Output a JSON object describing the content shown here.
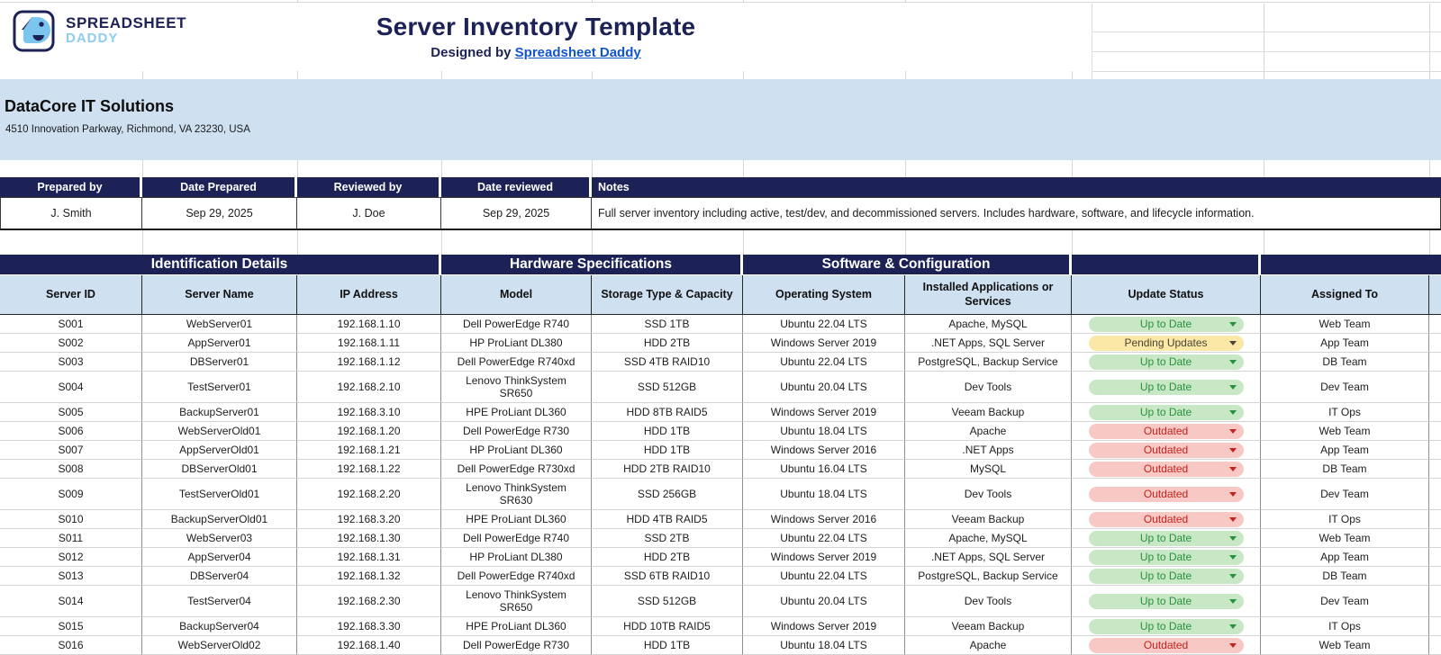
{
  "brand": {
    "line1": "SPREADSHEET",
    "line2": "DADDY",
    "logo": "spreadsheet-daddy-face-logo"
  },
  "header": {
    "title": "Server Inventory Template",
    "designed_by_prefix": "Designed by ",
    "designed_by_link": "Spreadsheet Daddy"
  },
  "company": {
    "name": "DataCore IT Solutions",
    "address": "4510 Innovation Parkway, Richmond, VA 23230, USA"
  },
  "meta_table": {
    "headers": [
      "Prepared by",
      "Date Prepared",
      "Reviewed by",
      "Date reviewed",
      "Notes"
    ],
    "values": [
      "J. Smith",
      "Sep 29, 2025",
      "J. Doe",
      "Sep 29, 2025",
      "Full server inventory including active, test/dev, and decommissioned servers. Includes hardware, software, and lifecycle information."
    ]
  },
  "inventory": {
    "groups": [
      "Identification Details",
      "Hardware Specifications",
      "Software & Configuration",
      "",
      ""
    ],
    "columns": [
      "Server ID",
      "Server Name",
      "IP Address",
      "Model",
      "Storage Type & Capacity",
      "Operating System",
      "Installed Applications or Services",
      "Update Status",
      "Assigned To"
    ],
    "rows": [
      {
        "id": "S001",
        "name": "WebServer01",
        "ip": "192.168.1.10",
        "model": "Dell PowerEdge R740",
        "storage": "SSD 1TB",
        "os": "Ubuntu 22.04 LTS",
        "apps": "Apache, MySQL",
        "status": "Up to Date",
        "status_kind": "up",
        "team": "Web Team"
      },
      {
        "id": "S002",
        "name": "AppServer01",
        "ip": "192.168.1.11",
        "model": "HP ProLiant DL380",
        "storage": "HDD 2TB",
        "os": "Windows Server 2019",
        "apps": ".NET Apps, SQL Server",
        "status": "Pending Updates",
        "status_kind": "pending",
        "team": "App Team"
      },
      {
        "id": "S003",
        "name": "DBServer01",
        "ip": "192.168.1.12",
        "model": "Dell PowerEdge R740xd",
        "storage": "SSD 4TB RAID10",
        "os": "Ubuntu 22.04 LTS",
        "apps": "PostgreSQL, Backup Service",
        "status": "Up to Date",
        "status_kind": "up",
        "team": "DB Team"
      },
      {
        "id": "S004",
        "name": "TestServer01",
        "ip": "192.168.2.10",
        "model": "Lenovo ThinkSystem SR650",
        "storage": "SSD 512GB",
        "os": "Ubuntu 20.04 LTS",
        "apps": "Dev Tools",
        "status": "Up to Date",
        "status_kind": "up",
        "team": "Dev Team"
      },
      {
        "id": "S005",
        "name": "BackupServer01",
        "ip": "192.168.3.10",
        "model": "HPE ProLiant DL360",
        "storage": "HDD 8TB RAID5",
        "os": "Windows Server 2019",
        "apps": "Veeam Backup",
        "status": "Up to Date",
        "status_kind": "up",
        "team": "IT Ops"
      },
      {
        "id": "S006",
        "name": "WebServerOld01",
        "ip": "192.168.1.20",
        "model": "Dell PowerEdge R730",
        "storage": "HDD 1TB",
        "os": "Ubuntu 18.04 LTS",
        "apps": "Apache",
        "status": "Outdated",
        "status_kind": "outdated",
        "team": "Web Team"
      },
      {
        "id": "S007",
        "name": "AppServerOld01",
        "ip": "192.168.1.21",
        "model": "HP ProLiant DL360",
        "storage": "HDD 1TB",
        "os": "Windows Server 2016",
        "apps": ".NET Apps",
        "status": "Outdated",
        "status_kind": "outdated",
        "team": "App Team"
      },
      {
        "id": "S008",
        "name": "DBServerOld01",
        "ip": "192.168.1.22",
        "model": "Dell PowerEdge R730xd",
        "storage": "HDD 2TB RAID10",
        "os": "Ubuntu 16.04 LTS",
        "apps": "MySQL",
        "status": "Outdated",
        "status_kind": "outdated",
        "team": "DB Team"
      },
      {
        "id": "S009",
        "name": "TestServerOld01",
        "ip": "192.168.2.20",
        "model": "Lenovo ThinkSystem SR630",
        "storage": "SSD 256GB",
        "os": "Ubuntu 18.04 LTS",
        "apps": "Dev Tools",
        "status": "Outdated",
        "status_kind": "outdated",
        "team": "Dev Team"
      },
      {
        "id": "S010",
        "name": "BackupServerOld01",
        "ip": "192.168.3.20",
        "model": "HPE ProLiant DL360",
        "storage": "HDD 4TB RAID5",
        "os": "Windows Server 2016",
        "apps": "Veeam Backup",
        "status": "Outdated",
        "status_kind": "outdated",
        "team": "IT Ops"
      },
      {
        "id": "S011",
        "name": "WebServer03",
        "ip": "192.168.1.30",
        "model": "Dell PowerEdge R740",
        "storage": "SSD 2TB",
        "os": "Ubuntu 22.04 LTS",
        "apps": "Apache, MySQL",
        "status": "Up to Date",
        "status_kind": "up",
        "team": "Web Team"
      },
      {
        "id": "S012",
        "name": "AppServer04",
        "ip": "192.168.1.31",
        "model": "HP ProLiant DL380",
        "storage": "HDD 2TB",
        "os": "Windows Server 2019",
        "apps": ".NET Apps, SQL Server",
        "status": "Up to Date",
        "status_kind": "up",
        "team": "App Team"
      },
      {
        "id": "S013",
        "name": "DBServer04",
        "ip": "192.168.1.32",
        "model": "Dell PowerEdge R740xd",
        "storage": "SSD 6TB RAID10",
        "os": "Ubuntu 22.04 LTS",
        "apps": "PostgreSQL, Backup Service",
        "status": "Up to Date",
        "status_kind": "up",
        "team": "DB Team"
      },
      {
        "id": "S014",
        "name": "TestServer04",
        "ip": "192.168.2.30",
        "model": "Lenovo ThinkSystem SR650",
        "storage": "SSD 512GB",
        "os": "Ubuntu 20.04 LTS",
        "apps": "Dev Tools",
        "status": "Up to Date",
        "status_kind": "up",
        "team": "Dev Team"
      },
      {
        "id": "S015",
        "name": "BackupServer04",
        "ip": "192.168.3.30",
        "model": "HPE ProLiant DL360",
        "storage": "HDD 10TB RAID5",
        "os": "Windows Server 2019",
        "apps": "Veeam Backup",
        "status": "Up to Date",
        "status_kind": "up",
        "team": "IT Ops"
      },
      {
        "id": "S016",
        "name": "WebServerOld02",
        "ip": "192.168.1.40",
        "model": "Dell PowerEdge R730",
        "storage": "HDD 1TB",
        "os": "Ubuntu 18.04 LTS",
        "apps": "Apache",
        "status": "Outdated",
        "status_kind": "outdated",
        "team": "Web Team"
      }
    ]
  },
  "colors": {
    "navy": "#1d2256",
    "band_blue": "#cfe0f1",
    "brand_light_blue": "#8ecdf1",
    "link_blue": "#1155cc",
    "status_up_bg": "#c8e7c4",
    "status_up_fg": "#27913f",
    "status_pending_bg": "#fbe7a6",
    "status_pending_fg": "#4a4435",
    "status_outdated_bg": "#f8c9c4",
    "status_outdated_fg": "#c5221f"
  }
}
